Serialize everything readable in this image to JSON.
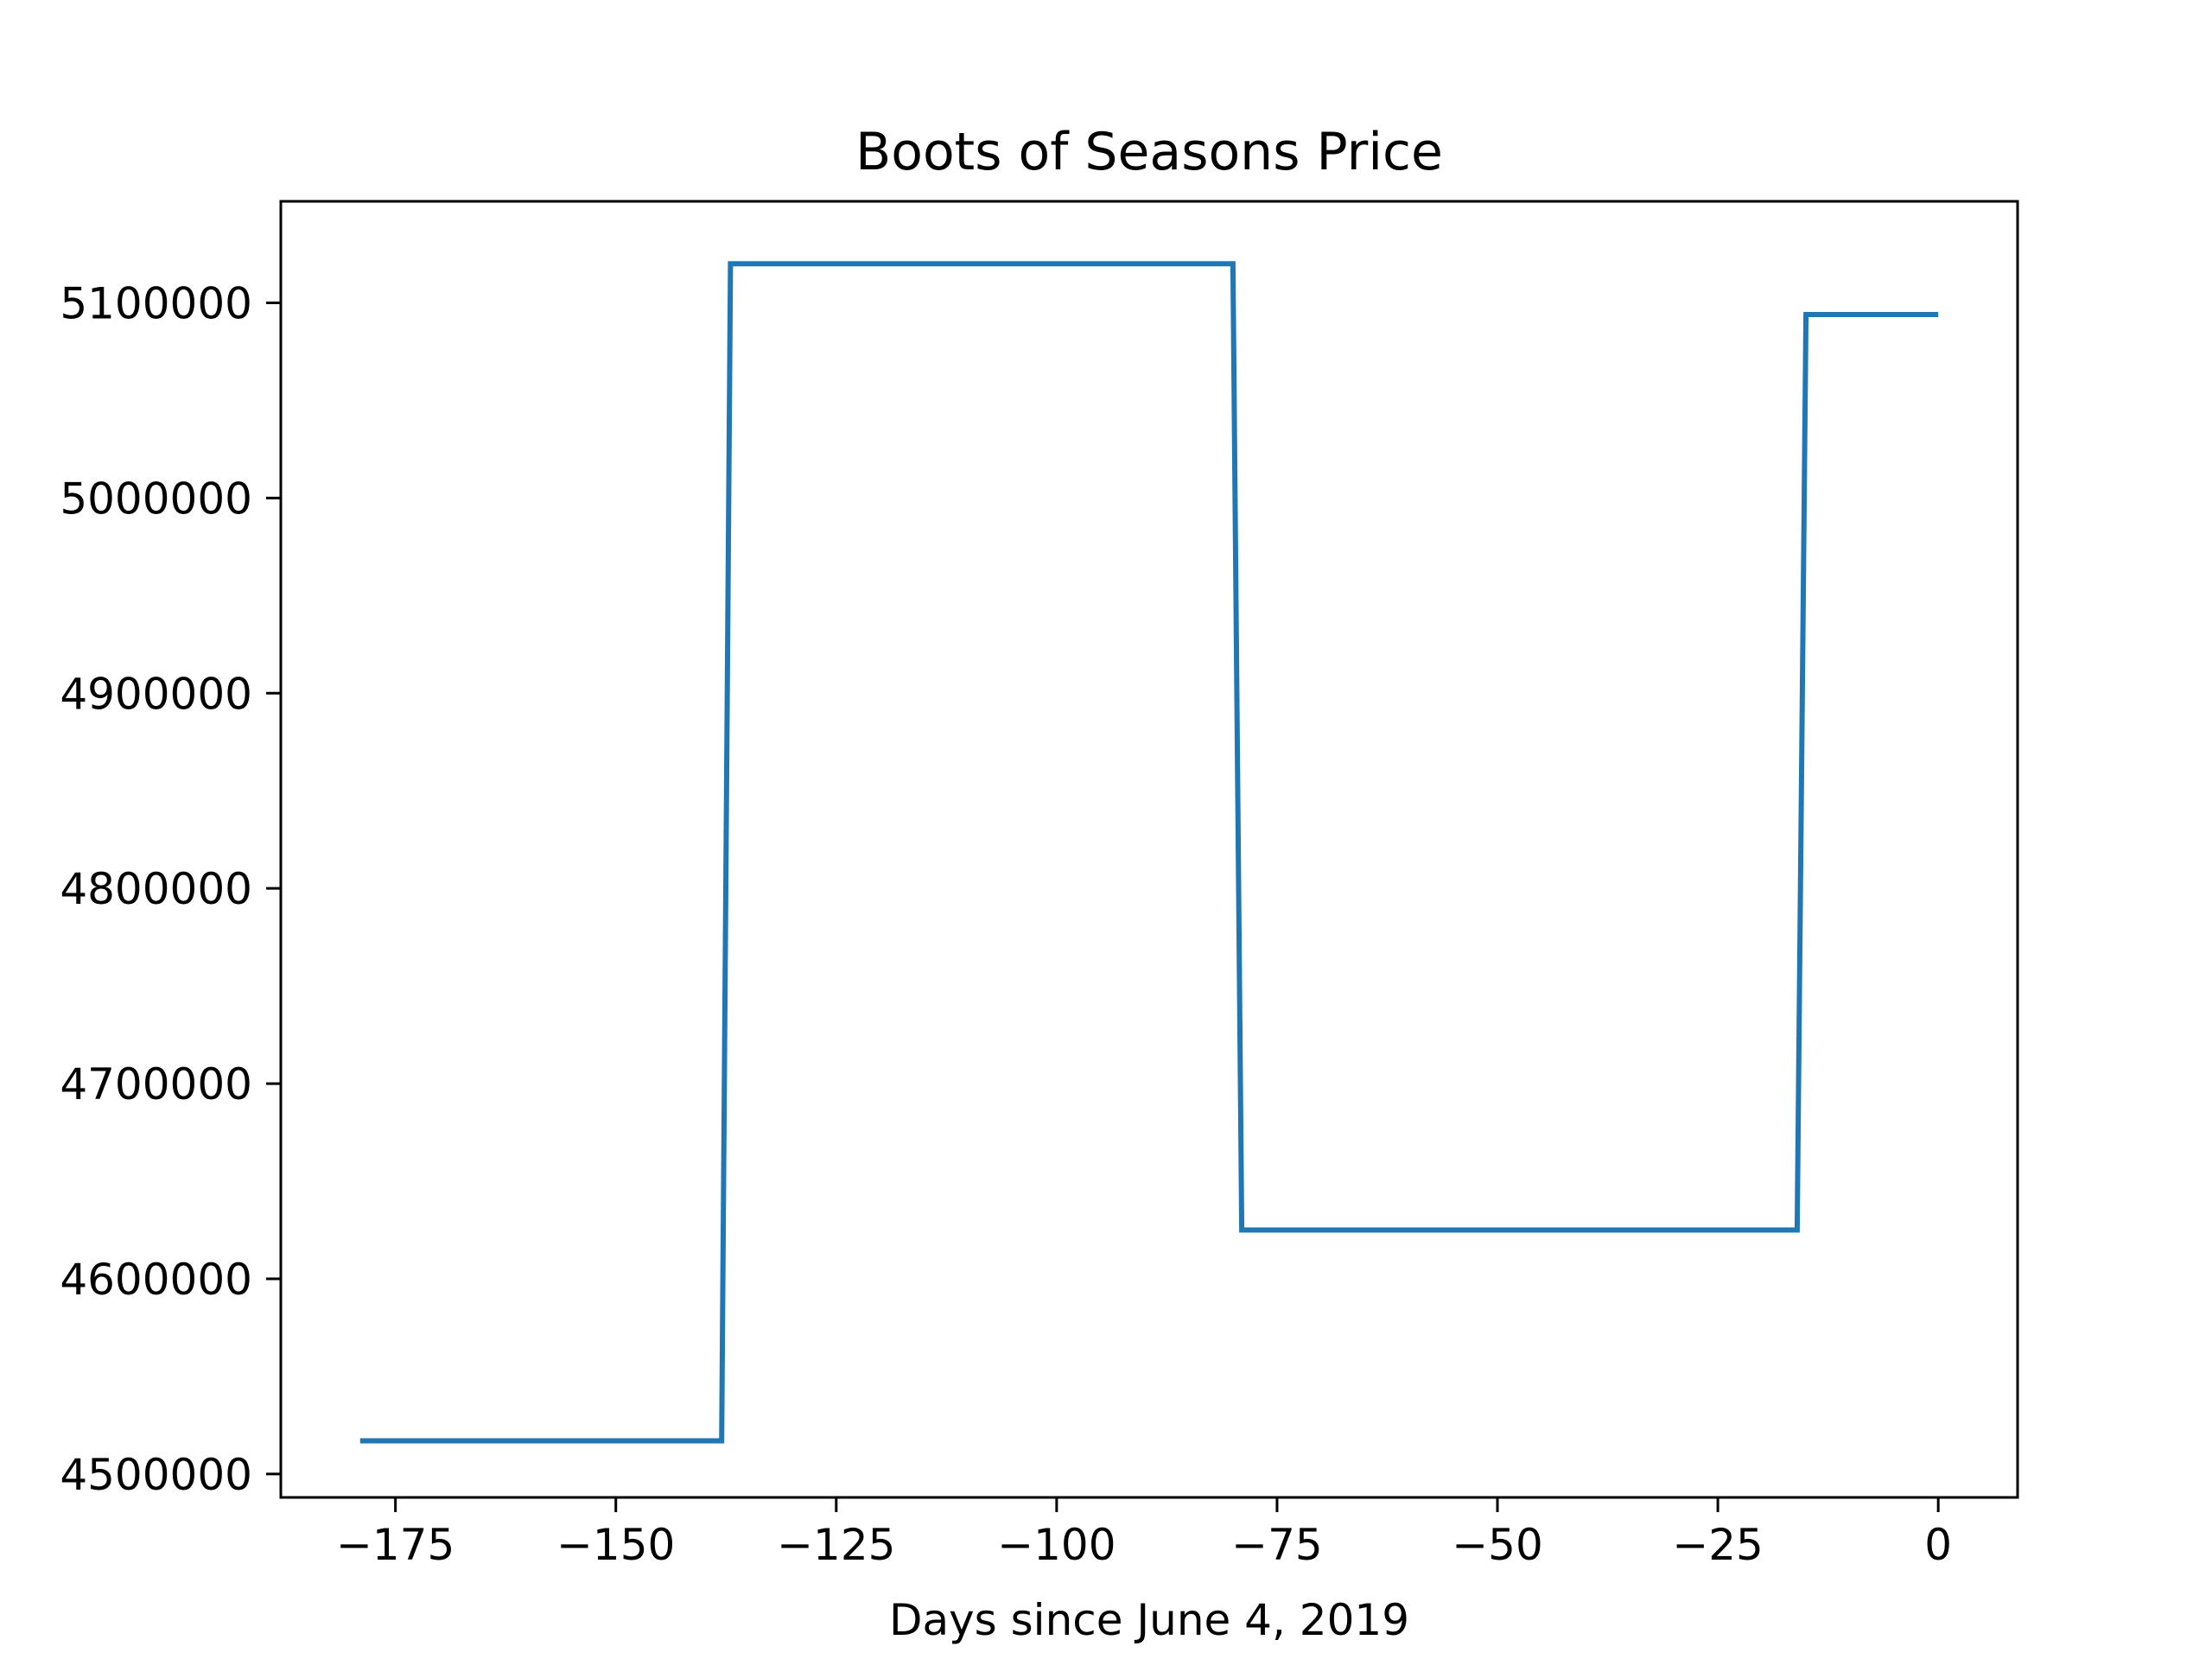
{
  "chart_data": {
    "type": "line",
    "title": "Boots of Seasons Price",
    "xlabel": "Days since June 4, 2019",
    "ylabel": "",
    "xlim": [
      -188,
      9
    ],
    "ylim": [
      4488000,
      5152000
    ],
    "xticks": [
      -175,
      -150,
      -125,
      -100,
      -75,
      -50,
      -25,
      0
    ],
    "xtick_labels": [
      "−175",
      "−150",
      "−125",
      "−100",
      "−75",
      "−50",
      "−25",
      "0"
    ],
    "yticks": [
      4500000,
      4600000,
      4700000,
      4800000,
      4900000,
      5000000,
      5100000
    ],
    "ytick_labels": [
      "4500000",
      "4600000",
      "4700000",
      "4800000",
      "4900000",
      "5000000",
      "5100000"
    ],
    "grid": false,
    "legend": "none",
    "series": [
      {
        "color": "#1f77b4",
        "x": [
          -179,
          -138,
          -137,
          -80,
          -79,
          -16,
          -15,
          0
        ],
        "y": [
          4517000,
          4517000,
          5120000,
          5120000,
          4625000,
          4625000,
          5094000,
          5094000
        ]
      }
    ]
  }
}
